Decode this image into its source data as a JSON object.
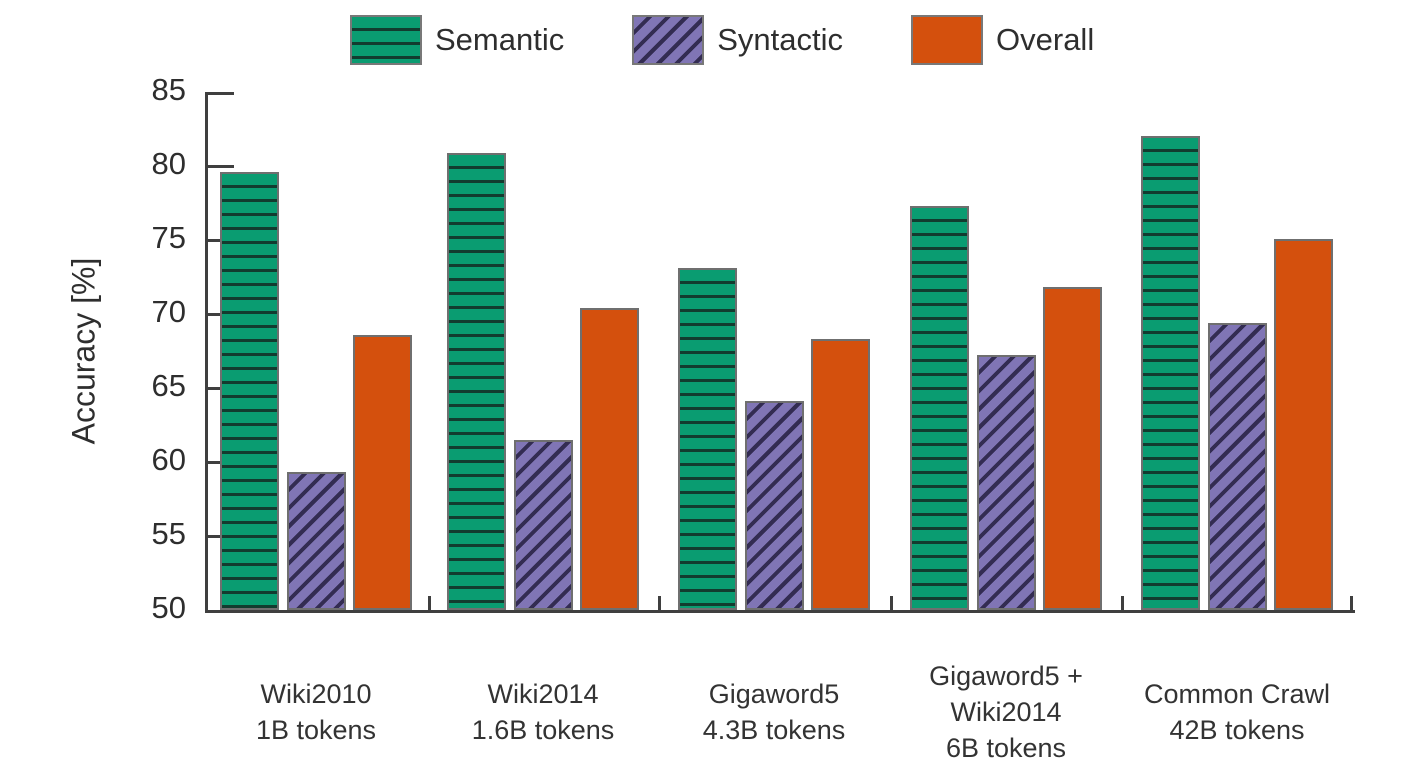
{
  "chart_data": {
    "type": "bar",
    "title": "",
    "ylabel": "Accuracy [%]",
    "xlabel": "",
    "ylim": [
      50,
      85
    ],
    "yticks": [
      85,
      80,
      75,
      70,
      65,
      60,
      55,
      50
    ],
    "grid": false,
    "legend_position": "top",
    "categories": [
      {
        "lines": [
          "Wiki2010",
          "1B tokens"
        ]
      },
      {
        "lines": [
          "Wiki2014",
          "1.6B tokens"
        ]
      },
      {
        "lines": [
          "Gigaword5",
          "4.3B tokens"
        ]
      },
      {
        "lines": [
          "Gigaword5 +",
          "Wiki2014",
          "6B tokens"
        ]
      },
      {
        "lines": [
          "Common Crawl",
          "42B tokens"
        ]
      }
    ],
    "series": [
      {
        "name": "Semantic",
        "color": "#0a9c71",
        "hatch": "horizontal",
        "hatch_color": "#123c2f",
        "values": [
          79.6,
          80.9,
          73.1,
          77.3,
          82.0
        ]
      },
      {
        "name": "Syntactic",
        "color": "#8075b5",
        "hatch": "diagonal",
        "hatch_color": "#332c52",
        "values": [
          59.3,
          61.5,
          64.1,
          67.2,
          69.4
        ]
      },
      {
        "name": "Overall",
        "color": "#d4500d",
        "hatch": "none",
        "hatch_color": "",
        "values": [
          68.6,
          70.4,
          68.3,
          71.8,
          75.1
        ]
      }
    ]
  },
  "colors": {
    "axis": "#3f3f3f",
    "text": "#2e2e2e",
    "bar_border": "#6f6f6f"
  }
}
